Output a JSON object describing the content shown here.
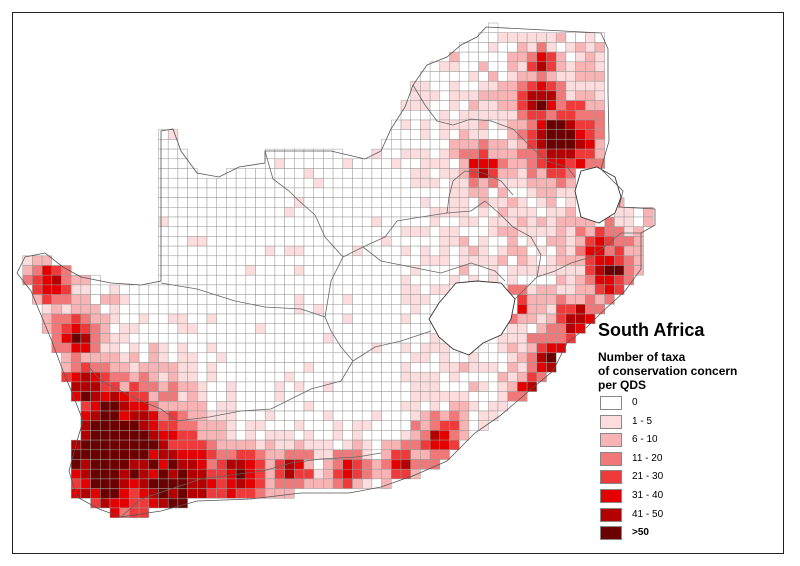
{
  "map": {
    "title": "South Africa",
    "subtitle_lines": [
      "Number of taxa",
      "of conservation concern",
      "per QDS"
    ],
    "colors": {
      "cell_border": "#9a9a9a",
      "province_border": "#666666",
      "map_frame": "#222222"
    }
  },
  "legend": [
    {
      "label": "0",
      "color": "#ffffff"
    },
    {
      "label": "1 - 5",
      "color": "#fcdcdc"
    },
    {
      "label": "6 - 10",
      "color": "#f8b4b4"
    },
    {
      "label": "11 - 20",
      "color": "#f07878"
    },
    {
      "label": "21 - 30",
      "color": "#ee3a3a"
    },
    {
      "label": "31 - 40",
      "color": "#e30000"
    },
    {
      "label": "41 - 50",
      "color": "#b30000"
    },
    {
      "label": ">50",
      "color": "#6b0000"
    }
  ]
}
